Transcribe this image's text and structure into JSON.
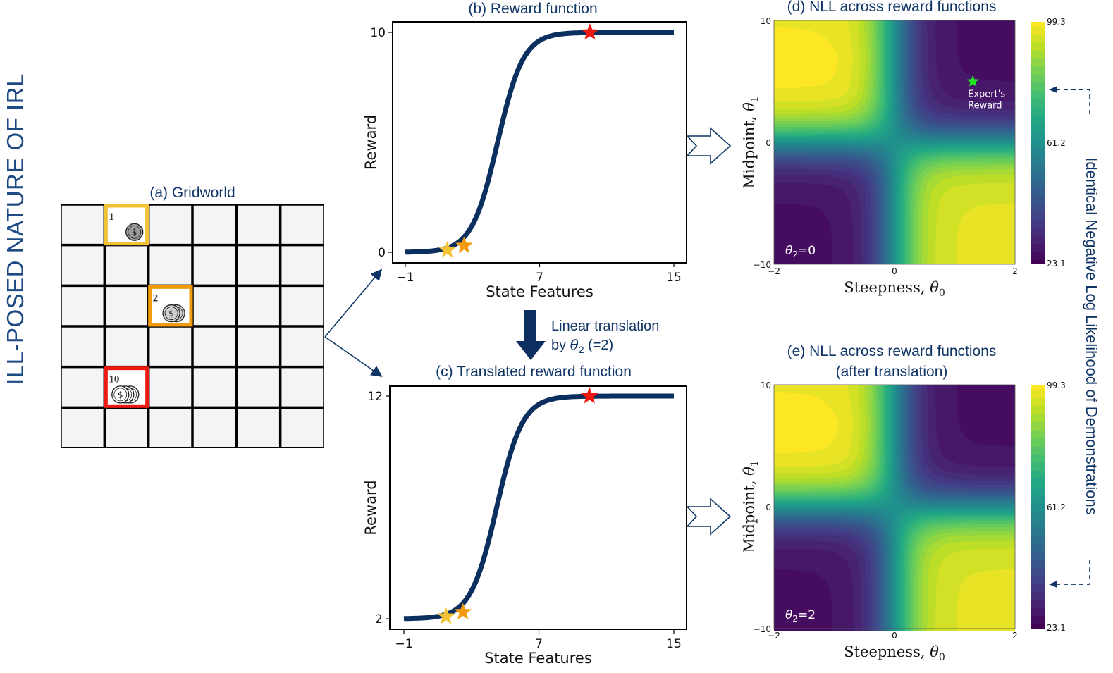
{
  "figure": {
    "main_title": "ILL-POSED NATURE OF IRL",
    "side_label": "Identical Negative Log Likelihood of Demonstrations",
    "translation_note": {
      "line1": "Linear translation",
      "line2_prefix": "by ",
      "line2_theta": "θ",
      "line2_sub": "2",
      "line2_suffix": " (=2)"
    },
    "colors": {
      "title_blue": "#1d4a84",
      "navy": "#0f3566",
      "curve": "#0b2f5e",
      "gold": "#f2c232",
      "orange": "#f39a0b",
      "red": "#ee1a12",
      "expert_star": "#22e622"
    }
  },
  "gridworld": {
    "title": "(a) Gridworld",
    "rows": 6,
    "cols": 6,
    "rewards": [
      {
        "label": "1",
        "row": 0,
        "col": 1,
        "coins": 1,
        "color": "#f2c232",
        "coin_fill": "#9a9a9a"
      },
      {
        "label": "2",
        "row": 2,
        "col": 2,
        "coins": 2,
        "color": "#f39a0b",
        "coin_fill": "#cfcfcf"
      },
      {
        "label": "10",
        "row": 4,
        "col": 1,
        "coins": 3,
        "color": "#ee1a12",
        "coin_fill": "#ffffff"
      }
    ],
    "coin_symbol": "$"
  },
  "chart_data": [
    {
      "id": "b",
      "type": "line",
      "title": "(b) Reward function",
      "xlabel": "State Features",
      "ylabel": "Reward",
      "xlim": [
        -1,
        15
      ],
      "ylim": [
        0,
        10
      ],
      "xticks": [
        "−1",
        "7",
        "15"
      ],
      "xtick_values": [
        -1,
        7,
        15
      ],
      "yticks": [
        "0",
        "10"
      ],
      "ytick_values": [
        0,
        10
      ],
      "series": [
        {
          "name": "sigmoid reward",
          "function": "theta2 + 10/(1+exp(-steepness*(x-midpoint)))",
          "steepness": 1.3,
          "midpoint": 4.5,
          "offset": 0,
          "x_range": [
            -1,
            15
          ]
        }
      ],
      "markers": [
        {
          "name": "reward-1",
          "x": 1.5,
          "y": 0.1,
          "color": "#f2c232"
        },
        {
          "name": "reward-2",
          "x": 2.5,
          "y": 0.3,
          "color": "#f39a0b"
        },
        {
          "name": "reward-10",
          "x": 10,
          "y": 10,
          "color": "#ee1a12"
        }
      ]
    },
    {
      "id": "c",
      "type": "line",
      "title": "(c) Translated reward function",
      "xlabel": "State Features",
      "ylabel": "Reward",
      "xlim": [
        -1,
        15
      ],
      "ylim": [
        2,
        12
      ],
      "xticks": [
        "−1",
        "7",
        "15"
      ],
      "xtick_values": [
        -1,
        7,
        15
      ],
      "yticks": [
        "2",
        "12"
      ],
      "ytick_values": [
        2,
        12
      ],
      "series": [
        {
          "name": "translated sigmoid reward",
          "function": "theta2 + 10/(1+exp(-steepness*(x-midpoint)))",
          "steepness": 1.3,
          "midpoint": 4.5,
          "offset": 2,
          "x_range": [
            -1,
            15
          ]
        }
      ],
      "markers": [
        {
          "name": "reward-1",
          "x": 1.5,
          "y": 2.1,
          "color": "#f2c232"
        },
        {
          "name": "reward-2",
          "x": 2.5,
          "y": 2.3,
          "color": "#f39a0b"
        },
        {
          "name": "reward-10",
          "x": 10,
          "y": 12,
          "color": "#ee1a12"
        }
      ]
    },
    {
      "id": "d",
      "type": "heatmap",
      "title": "(d) NLL across reward functions",
      "subtitle": "",
      "xlabel": "Steepness, ",
      "xlabel_sym": "θ",
      "xlabel_sub": "0",
      "ylabel": "Midpoint, ",
      "ylabel_sym": "θ",
      "ylabel_sub": "1",
      "xlim": [
        -2,
        2
      ],
      "ylim": [
        -10,
        10
      ],
      "xticks": [
        "−2",
        "0",
        "2"
      ],
      "yticks": [
        "−10",
        "0",
        "10"
      ],
      "colormap": "viridis",
      "colorbar": {
        "min": 23.1,
        "mid": 61.2,
        "max": 99.3,
        "ticks": [
          "99.3",
          "61.2",
          "23.1"
        ]
      },
      "annotation": {
        "sym": "θ",
        "sub": "2",
        "text": "=0"
      },
      "expert_reward": {
        "label_line1": "Expert's",
        "label_line2": "Reward",
        "x": 1.3,
        "y": 5
      },
      "description": "High NLL (yellow) in top-left (θ0<0, θ1>0) and bottom-right (θ0>0, θ1<0); low NLL (purple) in top-right and bottom-left; teal cross along θ0=0 and θ1=0",
      "indicator_value": 78
    },
    {
      "id": "e",
      "type": "heatmap",
      "title": "(e) NLL across reward functions",
      "subtitle": "(after translation)",
      "xlabel": "Steepness, ",
      "xlabel_sym": "θ",
      "xlabel_sub": "0",
      "ylabel": "Midpoint, ",
      "ylabel_sym": "θ",
      "ylabel_sub": "1",
      "xlim": [
        -2,
        2
      ],
      "ylim": [
        -10,
        10
      ],
      "xticks": [
        "−2",
        "0",
        "2"
      ],
      "yticks": [
        "−10",
        "0",
        "10"
      ],
      "colormap": "viridis",
      "colorbar": {
        "min": 23.1,
        "mid": 61.2,
        "max": 99.3,
        "ticks": [
          "99.3",
          "61.2",
          "23.1"
        ]
      },
      "annotation": {
        "sym": "θ",
        "sub": "2",
        "text": "=2"
      },
      "description": "Identical NLL landscape to (d)",
      "indicator_value": 37
    }
  ]
}
